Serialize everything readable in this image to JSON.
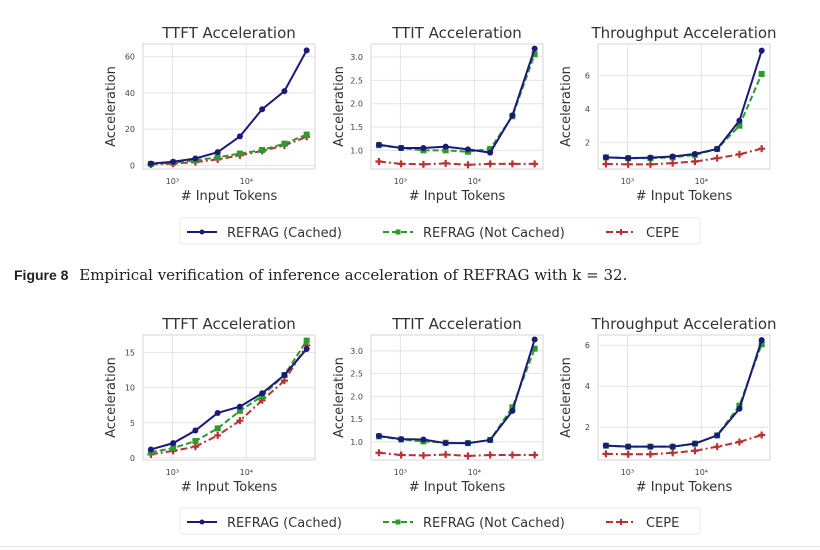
{
  "figure": {
    "caption_label": "Figure 8",
    "caption_text": "Empirical verification of inference acceleration of REFRAG with k = 32."
  },
  "legend": {
    "entries": [
      {
        "label": "REFRAG (Cached)",
        "color": "#1a1a7a",
        "style": "solid",
        "marker": "circle"
      },
      {
        "label": "REFRAG (Not Cached)",
        "color": "#2e9a2e",
        "style": "dashed",
        "marker": "square"
      },
      {
        "label": "CEPE",
        "color": "#b83232",
        "style": "dashdot",
        "marker": "plus"
      }
    ]
  },
  "chart_data": [
    {
      "type": "line",
      "row": 1,
      "title": "TTFT Acceleration",
      "xlabel": "# Input Tokens",
      "ylabel": "Acceleration",
      "xscale": "log",
      "x": [
        512,
        1024,
        2048,
        4096,
        8192,
        16384,
        32768,
        65536
      ],
      "xticks": [
        1000,
        10000
      ],
      "xtick_labels": [
        "10³",
        "10⁴"
      ],
      "ylim": [
        -2,
        67
      ],
      "yticks": [
        0,
        20,
        40,
        60
      ],
      "ytick_labels": [
        "0",
        "20",
        "40",
        "60"
      ],
      "grid": true,
      "series": [
        {
          "name": "REFRAG (Cached)",
          "values": [
            1.0,
            2.0,
            3.8,
            7.3,
            16.0,
            31.0,
            41.0,
            63.5
          ]
        },
        {
          "name": "REFRAG (Not Cached)",
          "values": [
            0.8,
            1.5,
            2.8,
            4.5,
            6.5,
            8.5,
            12.0,
            17.0
          ]
        },
        {
          "name": "CEPE",
          "values": [
            0.5,
            1.0,
            1.8,
            3.3,
            5.5,
            8.0,
            11.0,
            15.8
          ]
        }
      ]
    },
    {
      "type": "line",
      "row": 1,
      "title": "TTIT Acceleration",
      "xlabel": "# Input Tokens",
      "ylabel": "Acceleration",
      "xscale": "log",
      "x": [
        512,
        1024,
        2048,
        4096,
        8192,
        16384,
        32768,
        65536
      ],
      "xticks": [
        1000,
        10000
      ],
      "xtick_labels": [
        "10³",
        "10⁴"
      ],
      "ylim": [
        0.6,
        3.28
      ],
      "yticks": [
        1.0,
        1.5,
        2.0,
        2.5,
        3.0
      ],
      "ytick_labels": [
        "1.0",
        "1.5",
        "2.0",
        "2.5",
        "3.0"
      ],
      "grid": true,
      "series": [
        {
          "name": "REFRAG (Cached)",
          "values": [
            1.12,
            1.05,
            1.05,
            1.08,
            1.02,
            0.95,
            1.75,
            3.18
          ]
        },
        {
          "name": "REFRAG (Not Cached)",
          "values": [
            1.11,
            1.05,
            1.0,
            1.0,
            0.97,
            1.03,
            1.73,
            3.06
          ]
        },
        {
          "name": "CEPE",
          "values": [
            0.76,
            0.71,
            0.7,
            0.72,
            0.69,
            0.71,
            0.71,
            0.71
          ]
        }
      ]
    },
    {
      "type": "line",
      "row": 1,
      "title": "Throughput Acceleration",
      "xlabel": "# Input Tokens",
      "ylabel": "Acceleration",
      "xscale": "log",
      "x": [
        512,
        1024,
        2048,
        4096,
        8192,
        16384,
        32768,
        65536
      ],
      "xticks": [
        1000,
        10000
      ],
      "xtick_labels": [
        "10³",
        "10⁴"
      ],
      "ylim": [
        0.4,
        7.9
      ],
      "yticks": [
        2,
        4,
        6
      ],
      "ytick_labels": [
        "2",
        "4",
        "6"
      ],
      "grid": true,
      "series": [
        {
          "name": "REFRAG (Cached)",
          "values": [
            1.1,
            1.05,
            1.08,
            1.15,
            1.3,
            1.6,
            3.3,
            7.5
          ]
        },
        {
          "name": "REFRAG (Not Cached)",
          "values": [
            1.1,
            1.05,
            1.05,
            1.1,
            1.25,
            1.6,
            3.0,
            6.1
          ]
        },
        {
          "name": "CEPE",
          "values": [
            0.7,
            0.68,
            0.68,
            0.75,
            0.85,
            1.05,
            1.28,
            1.62
          ]
        }
      ]
    },
    {
      "type": "line",
      "row": 2,
      "title": "TTFT Acceleration",
      "xlabel": "# Input Tokens",
      "ylabel": "Acceleration",
      "xscale": "log",
      "x": [
        512,
        1024,
        2048,
        4096,
        8192,
        16384,
        32768,
        65536
      ],
      "xticks": [
        1000,
        10000
      ],
      "xtick_labels": [
        "10³",
        "10⁴"
      ],
      "ylim": [
        -0.3,
        17.5
      ],
      "yticks": [
        0,
        5,
        10,
        15
      ],
      "ytick_labels": [
        "0",
        "5",
        "10",
        "15"
      ],
      "grid": true,
      "series": [
        {
          "name": "REFRAG (Cached)",
          "values": [
            1.2,
            2.1,
            3.9,
            6.4,
            7.3,
            9.2,
            11.8,
            15.5
          ]
        },
        {
          "name": "REFRAG (Not Cached)",
          "values": [
            0.8,
            1.4,
            2.4,
            4.2,
            6.7,
            8.8,
            11.8,
            16.7
          ]
        },
        {
          "name": "CEPE",
          "values": [
            0.5,
            1.0,
            1.6,
            3.2,
            5.3,
            8.2,
            11.0,
            16.0
          ]
        }
      ]
    },
    {
      "type": "line",
      "row": 2,
      "title": "TTIT Acceleration",
      "xlabel": "# Input Tokens",
      "ylabel": "Acceleration",
      "xscale": "log",
      "x": [
        512,
        1024,
        2048,
        4096,
        8192,
        16384,
        32768,
        65536
      ],
      "xticks": [
        1000,
        10000
      ],
      "xtick_labels": [
        "10³",
        "10⁴"
      ],
      "ylim": [
        0.6,
        3.35
      ],
      "yticks": [
        1.0,
        1.5,
        2.0,
        2.5,
        3.0
      ],
      "ytick_labels": [
        "1.0",
        "1.5",
        "2.0",
        "2.5",
        "3.0"
      ],
      "grid": true,
      "series": [
        {
          "name": "REFRAG (Cached)",
          "values": [
            1.13,
            1.06,
            1.05,
            0.97,
            0.97,
            1.04,
            1.68,
            3.25
          ]
        },
        {
          "name": "REFRAG (Not Cached)",
          "values": [
            1.12,
            1.05,
            1.01,
            0.98,
            0.97,
            1.04,
            1.76,
            3.05
          ]
        },
        {
          "name": "CEPE",
          "values": [
            0.76,
            0.71,
            0.7,
            0.72,
            0.69,
            0.71,
            0.71,
            0.71
          ]
        }
      ]
    },
    {
      "type": "line",
      "row": 2,
      "title": "Throughput Acceleration",
      "xlabel": "# Input Tokens",
      "ylabel": "Acceleration",
      "xscale": "log",
      "x": [
        512,
        1024,
        2048,
        4096,
        8192,
        16384,
        32768,
        65536
      ],
      "xticks": [
        1000,
        10000
      ],
      "xtick_labels": [
        "10³",
        "10⁴"
      ],
      "ylim": [
        0.4,
        6.5
      ],
      "yticks": [
        2,
        4,
        6
      ],
      "ytick_labels": [
        "2",
        "4",
        "6"
      ],
      "grid": true,
      "series": [
        {
          "name": "REFRAG (Cached)",
          "values": [
            1.1,
            1.05,
            1.05,
            1.05,
            1.2,
            1.6,
            2.9,
            6.25
          ]
        },
        {
          "name": "REFRAG (Not Cached)",
          "values": [
            1.1,
            1.05,
            1.05,
            1.05,
            1.2,
            1.6,
            3.05,
            6.05
          ]
        },
        {
          "name": "CEPE",
          "values": [
            0.7,
            0.68,
            0.68,
            0.75,
            0.85,
            1.05,
            1.28,
            1.62
          ]
        }
      ]
    }
  ]
}
